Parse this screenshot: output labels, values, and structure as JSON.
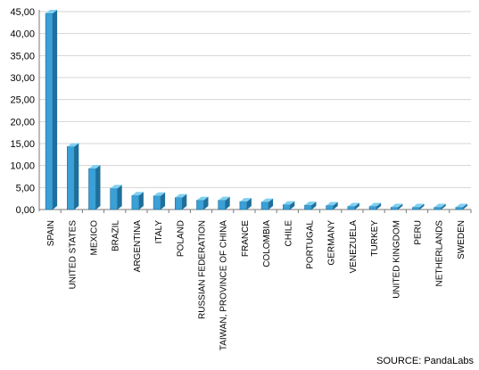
{
  "chart_data": {
    "type": "bar",
    "categories": [
      "SPAIN",
      "UNITED STATES",
      "MEXICO",
      "BRAZIL",
      "ARGENTINA",
      "ITALY",
      "POLAND",
      "RUSSIAN FEDERATION",
      "TAIWAN, PROVINCE OF CHINA",
      "FRANCE",
      "COLOMBIA",
      "CHILE",
      "PORTUGAL",
      "GERMANY",
      "VENEZUELA",
      "TURKEY",
      "UNITED KINGDOM",
      "PERU",
      "NETHERLANDS",
      "SWEDEN"
    ],
    "values": [
      44.6,
      14.3,
      9.3,
      4.8,
      3.2,
      3.1,
      2.7,
      2.1,
      2.1,
      1.8,
      1.7,
      1.1,
      1.0,
      0.9,
      0.7,
      0.7,
      0.5,
      0.5,
      0.5,
      0.5
    ],
    "ylim": [
      0,
      45
    ],
    "yticks": [
      "0,00",
      "5,00",
      "10,00",
      "15,00",
      "20,00",
      "25,00",
      "30,00",
      "35,00",
      "40,00",
      "45,00"
    ],
    "grid": true,
    "title": "",
    "xlabel": "",
    "ylabel": "",
    "bar_color": "#3aa0d6",
    "bar_dark_color": "#1f6f9c",
    "bar_light_color": "#7fd0f2"
  },
  "source": "SOURCE: PandaLabs"
}
